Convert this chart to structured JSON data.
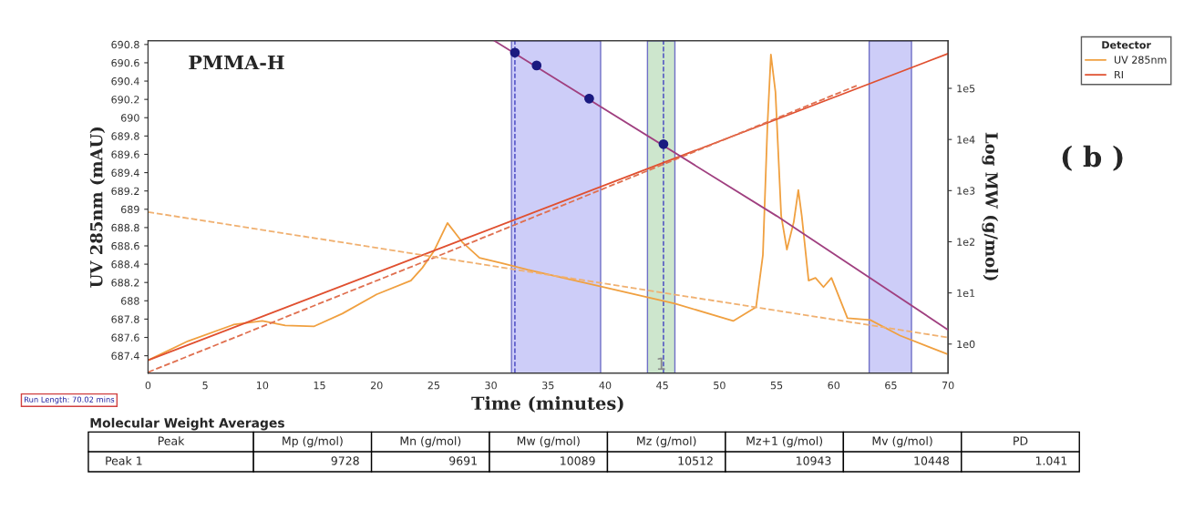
{
  "chart_data": {
    "type": "line",
    "xlabel": "Time (minutes)",
    "ylabel": "UV 285nm (mAU)",
    "y2label": "Log MW (g/mol)",
    "legend_title": "Detector",
    "legend": "top right",
    "grid": false,
    "xlim": [
      0,
      70
    ],
    "xticks": [
      0,
      5,
      10,
      15,
      20,
      25,
      30,
      35,
      40,
      45,
      50,
      55,
      60,
      65,
      70
    ],
    "ylim": [
      687.21,
      690.84
    ],
    "yticks": [
      687.4,
      687.6,
      687.8,
      688,
      688.2,
      688.4,
      688.6,
      688.8,
      689,
      689.2,
      689.4,
      689.6,
      689.8,
      690,
      690.2,
      690.4,
      690.6,
      690.8
    ],
    "log": "y2",
    "y2lim": [
      0.27,
      850000
    ],
    "y2ticks": [
      {
        "value": 1,
        "label": "1e0"
      },
      {
        "value": 10,
        "label": "1e1"
      },
      {
        "value": 100,
        "label": "1e2"
      },
      {
        "value": 1000,
        "label": "1e3"
      },
      {
        "value": 10000,
        "label": "1e4"
      },
      {
        "value": 100000,
        "label": "1e5"
      }
    ],
    "series": [
      {
        "name": "UV 285nm",
        "color": "#f0a040",
        "line_style": "solid",
        "x": [
          0,
          3.5,
          7.5,
          10,
          12,
          14.5,
          17,
          20,
          23,
          24,
          25,
          26.2,
          27.5,
          29,
          31,
          33.2,
          39.8,
          46.1,
          51.2,
          53.2,
          53.8,
          54.2,
          54.5,
          54.9,
          55.4,
          55.9,
          56.5,
          56.9,
          57.2,
          57.8,
          58.4,
          59.1,
          59.8,
          61.2,
          63.2,
          65.8,
          69.9
        ],
        "values": [
          687.35,
          687.56,
          687.74,
          687.78,
          687.73,
          687.72,
          687.86,
          688.07,
          688.22,
          688.36,
          688.54,
          688.85,
          688.64,
          688.47,
          688.41,
          688.34,
          688.15,
          687.97,
          687.78,
          687.93,
          688.5,
          689.92,
          690.69,
          690.28,
          688.93,
          688.56,
          688.86,
          689.21,
          688.93,
          688.22,
          688.25,
          688.15,
          688.25,
          687.81,
          687.79,
          687.62,
          687.42
        ]
      },
      {
        "name": "RI",
        "color": "#e05030",
        "line_style": "solid",
        "x": [
          0,
          70
        ],
        "values": [
          687.35,
          690.7
        ]
      },
      {
        "color": "#e07050",
        "line_style": "dashed",
        "x": [
          0,
          25,
          62
        ],
        "values": [
          687.22,
          688.47,
          690.35
        ]
      },
      {
        "color": "#f0b070",
        "line_style": "dashed",
        "x": [
          0,
          70
        ],
        "values": [
          688.97,
          687.6
        ]
      },
      {
        "color": "#a04080",
        "line_style": "solid",
        "axis": "y2",
        "x": [
          30.3,
          55,
          70
        ],
        "values": [
          850000,
          320,
          1.9
        ]
      },
      {
        "type": "scatter",
        "color": "#1a1a80",
        "marker": "circle",
        "axis": "y2",
        "x": [
          32.1,
          34,
          38.6,
          45.1
        ],
        "values": [
          500000,
          280000,
          63000,
          8100
        ]
      }
    ],
    "bands": [
      {
        "axis": "x",
        "from": 31.8,
        "to": 39.6,
        "color": "#c8c8f8"
      },
      {
        "axis": "x",
        "from": 43.7,
        "to": 46.1,
        "color": "#c8e4c8",
        "label": "1"
      },
      {
        "axis": "x",
        "from": 63.1,
        "to": 66.8,
        "color": "#c8c8f8"
      }
    ],
    "ref_lines": [
      {
        "axis": "x",
        "value": 32.1,
        "color": "#4040c0",
        "line_style": "dashed"
      },
      {
        "axis": "x",
        "value": 45.1,
        "color": "#4040c0",
        "line_style": "dashed"
      }
    ],
    "annotations": [
      "PMMA-H",
      "( b )",
      "Run Length: 70.02 mins",
      "Molecular Weight Averages",
      "Peak",
      "Mp (g/mol)",
      "Mn (g/mol)",
      "Mw (g/mol)",
      "Mz (g/mol)",
      "Mz+1 (g/mol)",
      "Mv (g/mol)",
      "PD",
      "Peak 1",
      "9728",
      "9691",
      "10089",
      "10512",
      "10943",
      "10448",
      "1.041"
    ]
  }
}
